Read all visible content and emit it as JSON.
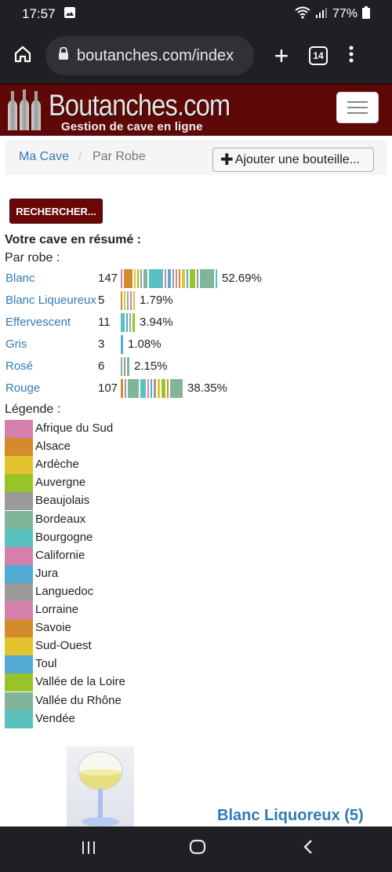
{
  "status_bar": {
    "time": "17:57",
    "battery": "77%"
  },
  "browser": {
    "url": "boutanches.com/index",
    "tab_count": "14"
  },
  "site": {
    "logo_name": "Boutanches.com",
    "logo_tagline": "Gestion de cave en ligne"
  },
  "breadcrumb": {
    "items": [
      "Ma Cave",
      "Par Robe"
    ],
    "separator": "/"
  },
  "add_bottle_button": "Ajouter une bouteille...",
  "search_button": "RECHERCHER...",
  "summary": {
    "title": "Votre cave en résumé :",
    "by_robe_label": "Par robe :"
  },
  "colors": {
    "Afrique du Sud": "#d47fac",
    "Alsace": "#d38b2e",
    "Ardèche": "#e4c32f",
    "Auvergne": "#98c42a",
    "Beaujolais": "#9a9a9a",
    "Bordeaux": "#80b59a",
    "Bourgogne": "#5bc0c0",
    "Californie": "#d47fac",
    "Jura": "#53abd3",
    "Languedoc": "#9a9a9a",
    "Lorraine": "#d47fac",
    "Savoie": "#d38b2e",
    "Sud-Ouest": "#e4c32f",
    "Toul": "#53abd3",
    "Vallée de la Loire": "#98c42a",
    "Vallée du Rhône": "#80b59a",
    "Vendée": "#5bc0c0"
  },
  "robes": [
    {
      "name": "Blanc",
      "count": "147",
      "percent": "52.69%",
      "segments": [
        {
          "region": "Afrique du Sud",
          "n": 2
        },
        {
          "region": "Alsace",
          "n": 12
        },
        {
          "region": "Ardèche",
          "n": 2
        },
        {
          "region": "Auvergne",
          "n": 2
        },
        {
          "region": "Beaujolais",
          "n": 2
        },
        {
          "region": "Bordeaux",
          "n": 6
        },
        {
          "region": "Bourgogne",
          "n": 20
        },
        {
          "region": "Californie",
          "n": 2
        },
        {
          "region": "Jura",
          "n": 4
        },
        {
          "region": "Languedoc",
          "n": 2
        },
        {
          "region": "Lorraine",
          "n": 2
        },
        {
          "region": "Savoie",
          "n": 2
        },
        {
          "region": "Sud-Ouest",
          "n": 4
        },
        {
          "region": "Toul",
          "n": 2
        },
        {
          "region": "Vallée de la Loire",
          "n": 8
        },
        {
          "region": "Languedoc",
          "n": 2
        },
        {
          "region": "Vallée du Rhône",
          "n": 20
        },
        {
          "region": "Vendée",
          "n": 2
        }
      ]
    },
    {
      "name": "Blanc Liqueureux",
      "count": "5",
      "percent": "1.79%",
      "segments": [
        {
          "region": "Alsace",
          "n": 2
        },
        {
          "region": "Ardèche",
          "n": 1
        },
        {
          "region": "Bordeaux",
          "n": 2
        },
        {
          "region": "Californie",
          "n": 1
        },
        {
          "region": "Sud-Ouest",
          "n": 2
        }
      ]
    },
    {
      "name": "Effervescent",
      "count": "11",
      "percent": "3.94%",
      "segments": [
        {
          "region": "Bourgogne",
          "n": 5
        },
        {
          "region": "Jura",
          "n": 2
        },
        {
          "region": "Bordeaux",
          "n": 2
        },
        {
          "region": "Vallée de la Loire",
          "n": 3
        }
      ]
    },
    {
      "name": "Gris",
      "count": "3",
      "percent": "1.08%",
      "segments": [
        {
          "region": "Toul",
          "n": 3
        }
      ]
    },
    {
      "name": "Rosé",
      "count": "6",
      "percent": "2.15%",
      "segments": [
        {
          "region": "Bordeaux",
          "n": 2
        },
        {
          "region": "Beaujolais",
          "n": 2
        },
        {
          "region": "Vallée du Rhône",
          "n": 3
        }
      ]
    },
    {
      "name": "Rouge",
      "count": "107",
      "percent": "38.35%",
      "segments": [
        {
          "region": "Alsace",
          "n": 3
        },
        {
          "region": "Beaujolais",
          "n": 2
        },
        {
          "region": "Bordeaux",
          "n": 15
        },
        {
          "region": "Bourgogne",
          "n": 8
        },
        {
          "region": "Californie",
          "n": 2
        },
        {
          "region": "Jura",
          "n": 2
        },
        {
          "region": "Languedoc",
          "n": 3
        },
        {
          "region": "Ardèche",
          "n": 3
        },
        {
          "region": "Vallée de la Loire",
          "n": 6
        },
        {
          "region": "Savoie",
          "n": 2
        },
        {
          "region": "Vallée du Rhône",
          "n": 18
        }
      ]
    }
  ],
  "legend": {
    "title": "Légende :",
    "items": [
      "Afrique du Sud",
      "Alsace",
      "Ardèche",
      "Auvergne",
      "Beaujolais",
      "Bordeaux",
      "Bourgogne",
      "Californie",
      "Jura",
      "Languedoc",
      "Lorraine",
      "Savoie",
      "Sud-Ouest",
      "Toul",
      "Vallée de la Loire",
      "Vallée du Rhône",
      "Vendée"
    ]
  },
  "section_title": "Blanc Liquoreux (5)"
}
